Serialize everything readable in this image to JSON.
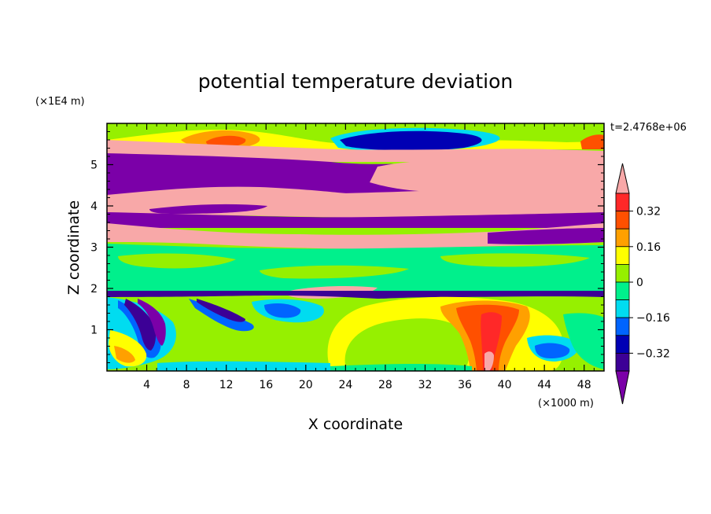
{
  "chart_data": {
    "type": "heatmap",
    "title": "potential temperature deviation",
    "xlabel": "X coordinate",
    "ylabel": "Z coordinate",
    "x_unit": "(×1000 m)",
    "y_unit": "(×1E4 m)",
    "time_label": "t=2.4768e+06",
    "xlim": [
      0,
      50
    ],
    "ylim": [
      0,
      6
    ],
    "x_ticks": [
      "4",
      "8",
      "12",
      "16",
      "20",
      "24",
      "28",
      "32",
      "36",
      "40",
      "44",
      "48"
    ],
    "y_ticks": [
      "1",
      "2",
      "3",
      "4",
      "5"
    ],
    "colorbar": {
      "tick_labels": [
        "0.32",
        "0.16",
        "0",
        "−0.16",
        "−0.32"
      ],
      "levels": [
        -0.4,
        -0.32,
        -0.24,
        -0.16,
        -0.08,
        0,
        0.08,
        0.16,
        0.24,
        0.32,
        0.4
      ],
      "colors": [
        "#7b00a8",
        "#3c0096",
        "#0000b4",
        "#0064ff",
        "#00dcf0",
        "#00f08c",
        "#96f000",
        "#ffff00",
        "#ffa000",
        "#ff5000",
        "#ff2828",
        "#f8a8a8"
      ]
    },
    "regions": [
      {
        "z": [
          5.6,
          6.0
        ],
        "value": 0.05
      },
      {
        "z": [
          5.1,
          5.6
        ],
        "value": 0.45
      },
      {
        "z": [
          4.3,
          5.1
        ],
        "value": -0.45
      },
      {
        "z": [
          3.9,
          4.3
        ],
        "value": 0.45
      },
      {
        "z": [
          3.5,
          3.9
        ],
        "value": -0.45
      },
      {
        "z": [
          3.1,
          3.5
        ],
        "value": 0.45
      },
      {
        "z": [
          1.9,
          3.1
        ],
        "value": 0.0
      },
      {
        "z": [
          1.8,
          1.9
        ],
        "value": -0.36
      },
      {
        "z": [
          0.0,
          1.8
        ],
        "value": 0.05
      }
    ],
    "features": [
      {
        "x": 38,
        "z": 0.8,
        "value": 0.35,
        "note": "warm plume"
      },
      {
        "x": 44.5,
        "z": 0.45,
        "value": -0.2,
        "note": "cool pocket"
      },
      {
        "x": 6,
        "z": 1.2,
        "value": -0.4,
        "note": "cold streak"
      }
    ]
  }
}
